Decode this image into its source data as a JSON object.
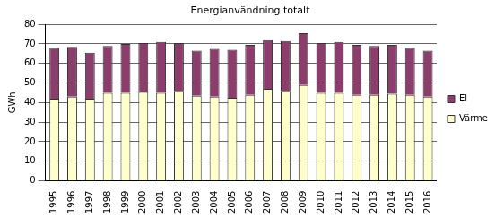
{
  "chart_data": {
    "type": "bar",
    "title": "Energianvändning totalt",
    "y_label": "GWh",
    "categories": [
      "1995",
      "1996",
      "1997",
      "1998",
      "1999",
      "2000",
      "2001",
      "2002",
      "2003",
      "2004",
      "2005",
      "2006",
      "2007",
      "2008",
      "2009",
      "2010",
      "2011",
      "2012",
      "2013",
      "2014",
      "2015",
      "2016"
    ],
    "series": [
      {
        "name": "Värme",
        "color": "#ffffcc",
        "values": [
          42,
          43,
          42,
          45,
          45,
          45.5,
          45,
          46,
          43.5,
          43,
          42.5,
          44,
          47,
          46,
          49,
          45,
          45,
          44,
          44,
          44.5,
          44,
          43
        ]
      },
      {
        "name": "El",
        "color": "#8b3d6b",
        "values": [
          26,
          25.5,
          23.5,
          24,
          25,
          25,
          26,
          24.5,
          23,
          24.5,
          24.5,
          25.5,
          25,
          25.5,
          26.5,
          25.5,
          26,
          25.5,
          25,
          25,
          24,
          23.5
        ]
      }
    ],
    "ylim": [
      0,
      80
    ],
    "yticks": [
      0,
      10,
      20,
      30,
      40,
      50,
      60,
      70,
      80
    ],
    "stacked": true,
    "grid": true,
    "legend": "right"
  }
}
